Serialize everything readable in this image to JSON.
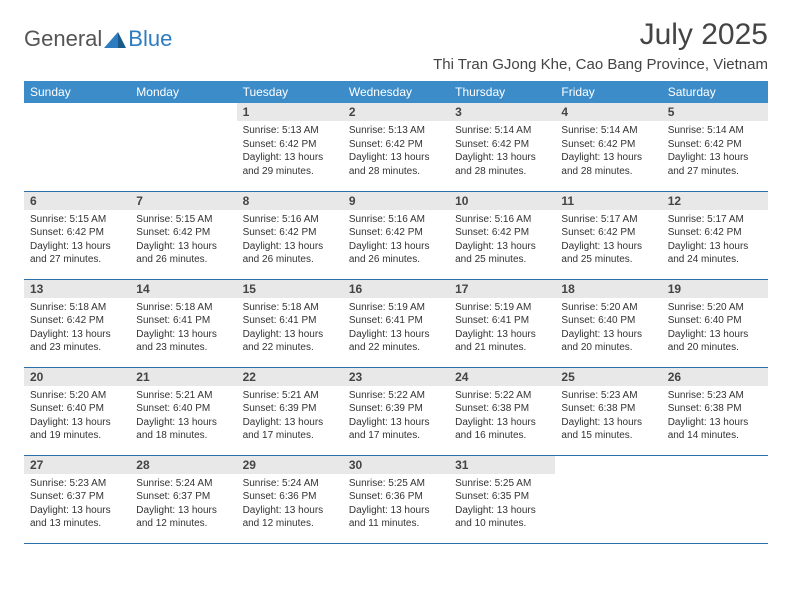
{
  "logo": {
    "general": "General",
    "blue": "Blue"
  },
  "title": "July 2025",
  "location": "Thi Tran GJong Khe, Cao Bang Province, Vietnam",
  "weekdays": [
    "Sunday",
    "Monday",
    "Tuesday",
    "Wednesday",
    "Thursday",
    "Friday",
    "Saturday"
  ],
  "colors": {
    "header_bg": "#3c8cc9",
    "header_text": "#ffffff",
    "daynum_bg": "#e8e8e8",
    "row_border": "#2a6faa",
    "title_text": "#444444",
    "body_text": "#333333",
    "logo_general": "#555555",
    "logo_blue": "#2d7cc0"
  },
  "days": [
    {
      "n": "",
      "empty": true
    },
    {
      "n": "",
      "empty": true
    },
    {
      "n": "1",
      "sunrise": "Sunrise: 5:13 AM",
      "sunset": "Sunset: 6:42 PM",
      "daylight": "Daylight: 13 hours and 29 minutes."
    },
    {
      "n": "2",
      "sunrise": "Sunrise: 5:13 AM",
      "sunset": "Sunset: 6:42 PM",
      "daylight": "Daylight: 13 hours and 28 minutes."
    },
    {
      "n": "3",
      "sunrise": "Sunrise: 5:14 AM",
      "sunset": "Sunset: 6:42 PM",
      "daylight": "Daylight: 13 hours and 28 minutes."
    },
    {
      "n": "4",
      "sunrise": "Sunrise: 5:14 AM",
      "sunset": "Sunset: 6:42 PM",
      "daylight": "Daylight: 13 hours and 28 minutes."
    },
    {
      "n": "5",
      "sunrise": "Sunrise: 5:14 AM",
      "sunset": "Sunset: 6:42 PM",
      "daylight": "Daylight: 13 hours and 27 minutes."
    },
    {
      "n": "6",
      "sunrise": "Sunrise: 5:15 AM",
      "sunset": "Sunset: 6:42 PM",
      "daylight": "Daylight: 13 hours and 27 minutes."
    },
    {
      "n": "7",
      "sunrise": "Sunrise: 5:15 AM",
      "sunset": "Sunset: 6:42 PM",
      "daylight": "Daylight: 13 hours and 26 minutes."
    },
    {
      "n": "8",
      "sunrise": "Sunrise: 5:16 AM",
      "sunset": "Sunset: 6:42 PM",
      "daylight": "Daylight: 13 hours and 26 minutes."
    },
    {
      "n": "9",
      "sunrise": "Sunrise: 5:16 AM",
      "sunset": "Sunset: 6:42 PM",
      "daylight": "Daylight: 13 hours and 26 minutes."
    },
    {
      "n": "10",
      "sunrise": "Sunrise: 5:16 AM",
      "sunset": "Sunset: 6:42 PM",
      "daylight": "Daylight: 13 hours and 25 minutes."
    },
    {
      "n": "11",
      "sunrise": "Sunrise: 5:17 AM",
      "sunset": "Sunset: 6:42 PM",
      "daylight": "Daylight: 13 hours and 25 minutes."
    },
    {
      "n": "12",
      "sunrise": "Sunrise: 5:17 AM",
      "sunset": "Sunset: 6:42 PM",
      "daylight": "Daylight: 13 hours and 24 minutes."
    },
    {
      "n": "13",
      "sunrise": "Sunrise: 5:18 AM",
      "sunset": "Sunset: 6:42 PM",
      "daylight": "Daylight: 13 hours and 23 minutes."
    },
    {
      "n": "14",
      "sunrise": "Sunrise: 5:18 AM",
      "sunset": "Sunset: 6:41 PM",
      "daylight": "Daylight: 13 hours and 23 minutes."
    },
    {
      "n": "15",
      "sunrise": "Sunrise: 5:18 AM",
      "sunset": "Sunset: 6:41 PM",
      "daylight": "Daylight: 13 hours and 22 minutes."
    },
    {
      "n": "16",
      "sunrise": "Sunrise: 5:19 AM",
      "sunset": "Sunset: 6:41 PM",
      "daylight": "Daylight: 13 hours and 22 minutes."
    },
    {
      "n": "17",
      "sunrise": "Sunrise: 5:19 AM",
      "sunset": "Sunset: 6:41 PM",
      "daylight": "Daylight: 13 hours and 21 minutes."
    },
    {
      "n": "18",
      "sunrise": "Sunrise: 5:20 AM",
      "sunset": "Sunset: 6:40 PM",
      "daylight": "Daylight: 13 hours and 20 minutes."
    },
    {
      "n": "19",
      "sunrise": "Sunrise: 5:20 AM",
      "sunset": "Sunset: 6:40 PM",
      "daylight": "Daylight: 13 hours and 20 minutes."
    },
    {
      "n": "20",
      "sunrise": "Sunrise: 5:20 AM",
      "sunset": "Sunset: 6:40 PM",
      "daylight": "Daylight: 13 hours and 19 minutes."
    },
    {
      "n": "21",
      "sunrise": "Sunrise: 5:21 AM",
      "sunset": "Sunset: 6:40 PM",
      "daylight": "Daylight: 13 hours and 18 minutes."
    },
    {
      "n": "22",
      "sunrise": "Sunrise: 5:21 AM",
      "sunset": "Sunset: 6:39 PM",
      "daylight": "Daylight: 13 hours and 17 minutes."
    },
    {
      "n": "23",
      "sunrise": "Sunrise: 5:22 AM",
      "sunset": "Sunset: 6:39 PM",
      "daylight": "Daylight: 13 hours and 17 minutes."
    },
    {
      "n": "24",
      "sunrise": "Sunrise: 5:22 AM",
      "sunset": "Sunset: 6:38 PM",
      "daylight": "Daylight: 13 hours and 16 minutes."
    },
    {
      "n": "25",
      "sunrise": "Sunrise: 5:23 AM",
      "sunset": "Sunset: 6:38 PM",
      "daylight": "Daylight: 13 hours and 15 minutes."
    },
    {
      "n": "26",
      "sunrise": "Sunrise: 5:23 AM",
      "sunset": "Sunset: 6:38 PM",
      "daylight": "Daylight: 13 hours and 14 minutes."
    },
    {
      "n": "27",
      "sunrise": "Sunrise: 5:23 AM",
      "sunset": "Sunset: 6:37 PM",
      "daylight": "Daylight: 13 hours and 13 minutes."
    },
    {
      "n": "28",
      "sunrise": "Sunrise: 5:24 AM",
      "sunset": "Sunset: 6:37 PM",
      "daylight": "Daylight: 13 hours and 12 minutes."
    },
    {
      "n": "29",
      "sunrise": "Sunrise: 5:24 AM",
      "sunset": "Sunset: 6:36 PM",
      "daylight": "Daylight: 13 hours and 12 minutes."
    },
    {
      "n": "30",
      "sunrise": "Sunrise: 5:25 AM",
      "sunset": "Sunset: 6:36 PM",
      "daylight": "Daylight: 13 hours and 11 minutes."
    },
    {
      "n": "31",
      "sunrise": "Sunrise: 5:25 AM",
      "sunset": "Sunset: 6:35 PM",
      "daylight": "Daylight: 13 hours and 10 minutes."
    },
    {
      "n": "",
      "empty": true
    },
    {
      "n": "",
      "empty": true
    }
  ]
}
